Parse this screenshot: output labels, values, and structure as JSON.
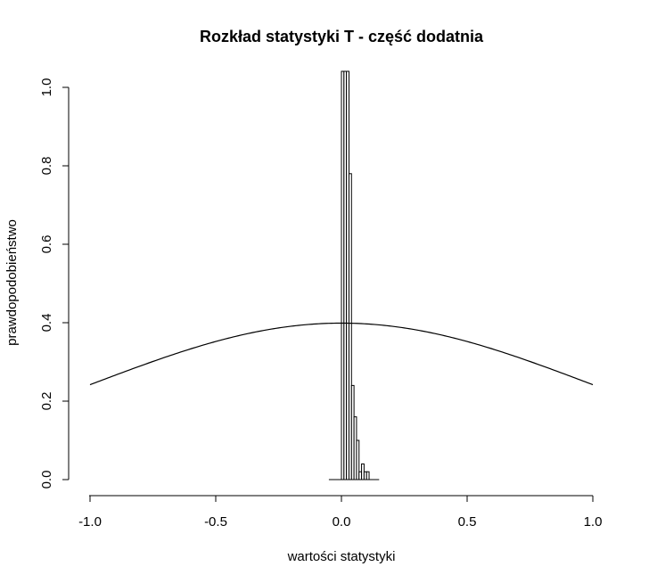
{
  "chart_data": {
    "type": "bar",
    "title": "Rozkład statystyki T - część dodatnia",
    "xlabel": "wartości statystyki",
    "ylabel": "prawdopodobieństwo",
    "xlim": [
      -1.0,
      1.0
    ],
    "ylim": [
      0.0,
      1.0
    ],
    "x_ticks": [
      "-1.0",
      "-0.5",
      "0.0",
      "0.5",
      "1.0"
    ],
    "y_ticks": [
      "0.0",
      "0.2",
      "0.4",
      "0.6",
      "0.8",
      "1.0"
    ],
    "histogram": {
      "bin_width": 0.01,
      "bins": [
        {
          "x0": 0.0,
          "x1": 0.01,
          "value": 1.05
        },
        {
          "x0": 0.01,
          "x1": 0.02,
          "value": 1.05
        },
        {
          "x0": 0.02,
          "x1": 0.03,
          "value": 1.05
        },
        {
          "x0": 0.03,
          "x1": 0.04,
          "value": 0.78
        },
        {
          "x0": 0.04,
          "x1": 0.05,
          "value": 0.24
        },
        {
          "x0": 0.05,
          "x1": 0.06,
          "value": 0.16
        },
        {
          "x0": 0.06,
          "x1": 0.07,
          "value": 0.1
        },
        {
          "x0": 0.07,
          "x1": 0.08,
          "value": 0.02
        },
        {
          "x0": 0.08,
          "x1": 0.09,
          "value": 0.04
        },
        {
          "x0": 0.09,
          "x1": 0.1,
          "value": 0.02
        },
        {
          "x0": 0.1,
          "x1": 0.11,
          "value": 0.02
        }
      ],
      "baseline_range": [
        -0.05,
        0.15
      ]
    },
    "curve": {
      "type": "normal_density",
      "mean": 0,
      "sd": 1,
      "x_range": [
        -1.0,
        1.0
      ]
    }
  }
}
